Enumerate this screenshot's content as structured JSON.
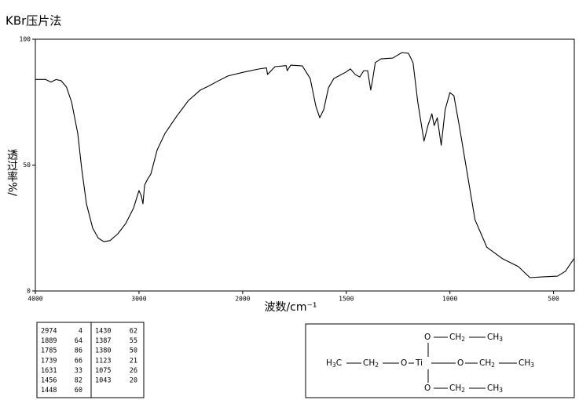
{
  "chart_data": {
    "type": "line",
    "title": "KBr压片法",
    "x_label": "波数/cm⁻¹",
    "y_label": "透过率%/",
    "x": [
      4000,
      3900,
      3850,
      3800,
      3750,
      3700,
      3650,
      3591,
      3553,
      3507,
      3447,
      3393,
      3340,
      3280,
      3204,
      3128,
      3052,
      3000,
      2977,
      2962,
      2946,
      2916,
      2886,
      2825,
      2749,
      2635,
      2522,
      2408,
      2332,
      2256,
      2142,
      1996,
      1920,
      1885,
      1880,
      1844,
      1790,
      1785,
      1768,
      1712,
      1674,
      1647,
      1628,
      1609,
      1586,
      1560,
      1503,
      1480,
      1457,
      1435,
      1416,
      1397,
      1382,
      1375,
      1360,
      1333,
      1276,
      1231,
      1200,
      1178,
      1155,
      1125,
      1106,
      1087,
      1076,
      1061,
      1042,
      1023,
      1000,
      981,
      955,
      917,
      879,
      822,
      746,
      670,
      614,
      557,
      481,
      443,
      402
    ],
    "values": [
      84,
      84,
      83,
      84,
      83.5,
      81,
      75,
      62.6,
      48.6,
      34.6,
      25,
      21,
      19.6,
      20,
      22.7,
      26.8,
      33,
      39.9,
      37.7,
      34.6,
      42,
      44.5,
      46.4,
      56,
      62.6,
      69.5,
      75.7,
      79.8,
      81.3,
      83,
      85.4,
      86.9,
      88.2,
      88.6,
      86,
      89.1,
      89.5,
      87.5,
      89.7,
      89.4,
      84.4,
      73.5,
      68.8,
      72,
      80.7,
      84.4,
      86.9,
      88.2,
      86,
      85,
      87.5,
      87.5,
      79.8,
      82.9,
      90.7,
      92.2,
      92.5,
      94.7,
      94.4,
      90.7,
      75,
      59.5,
      65.7,
      70.4,
      65.7,
      68.8,
      57.9,
      72,
      78.8,
      77.6,
      65.7,
      47,
      28.3,
      17.4,
      12.8,
      9.7,
      5.3,
      5.6,
      5.9,
      7.8,
      12.8
    ],
    "color": "#000000",
    "xlim": [
      4000,
      400
    ],
    "xticks": [
      4000,
      3000,
      2000,
      1500,
      1000,
      500
    ],
    "ylim": [
      0,
      100
    ],
    "yticks": [
      0,
      50,
      100
    ]
  },
  "peak_table": {
    "rows": [
      [
        2974,
        4,
        1430,
        62
      ],
      [
        1889,
        64,
        1387,
        55
      ],
      [
        1785,
        86,
        1380,
        50
      ],
      [
        1739,
        66,
        1123,
        21
      ],
      [
        1631,
        33,
        1075,
        26
      ],
      [
        1456,
        82,
        1043,
        20
      ],
      [
        1448,
        60
      ]
    ]
  },
  "structure": {
    "nodes": [
      {
        "label": "O"
      },
      {
        "label": "CH",
        "sub": "2"
      },
      {
        "label": "CH",
        "sub": "3"
      },
      {
        "label": "H",
        "sub": "3",
        "tail": "C"
      },
      {
        "label": "CH",
        "sub": "2"
      },
      {
        "label": "O"
      },
      {
        "label": "Ti"
      },
      {
        "label": "O"
      },
      {
        "label": "CH",
        "sub": "2"
      },
      {
        "label": "CH",
        "sub": "3"
      },
      {
        "label": "O"
      },
      {
        "label": "CH",
        "sub": "2"
      },
      {
        "label": "CH",
        "sub": "3"
      }
    ]
  }
}
